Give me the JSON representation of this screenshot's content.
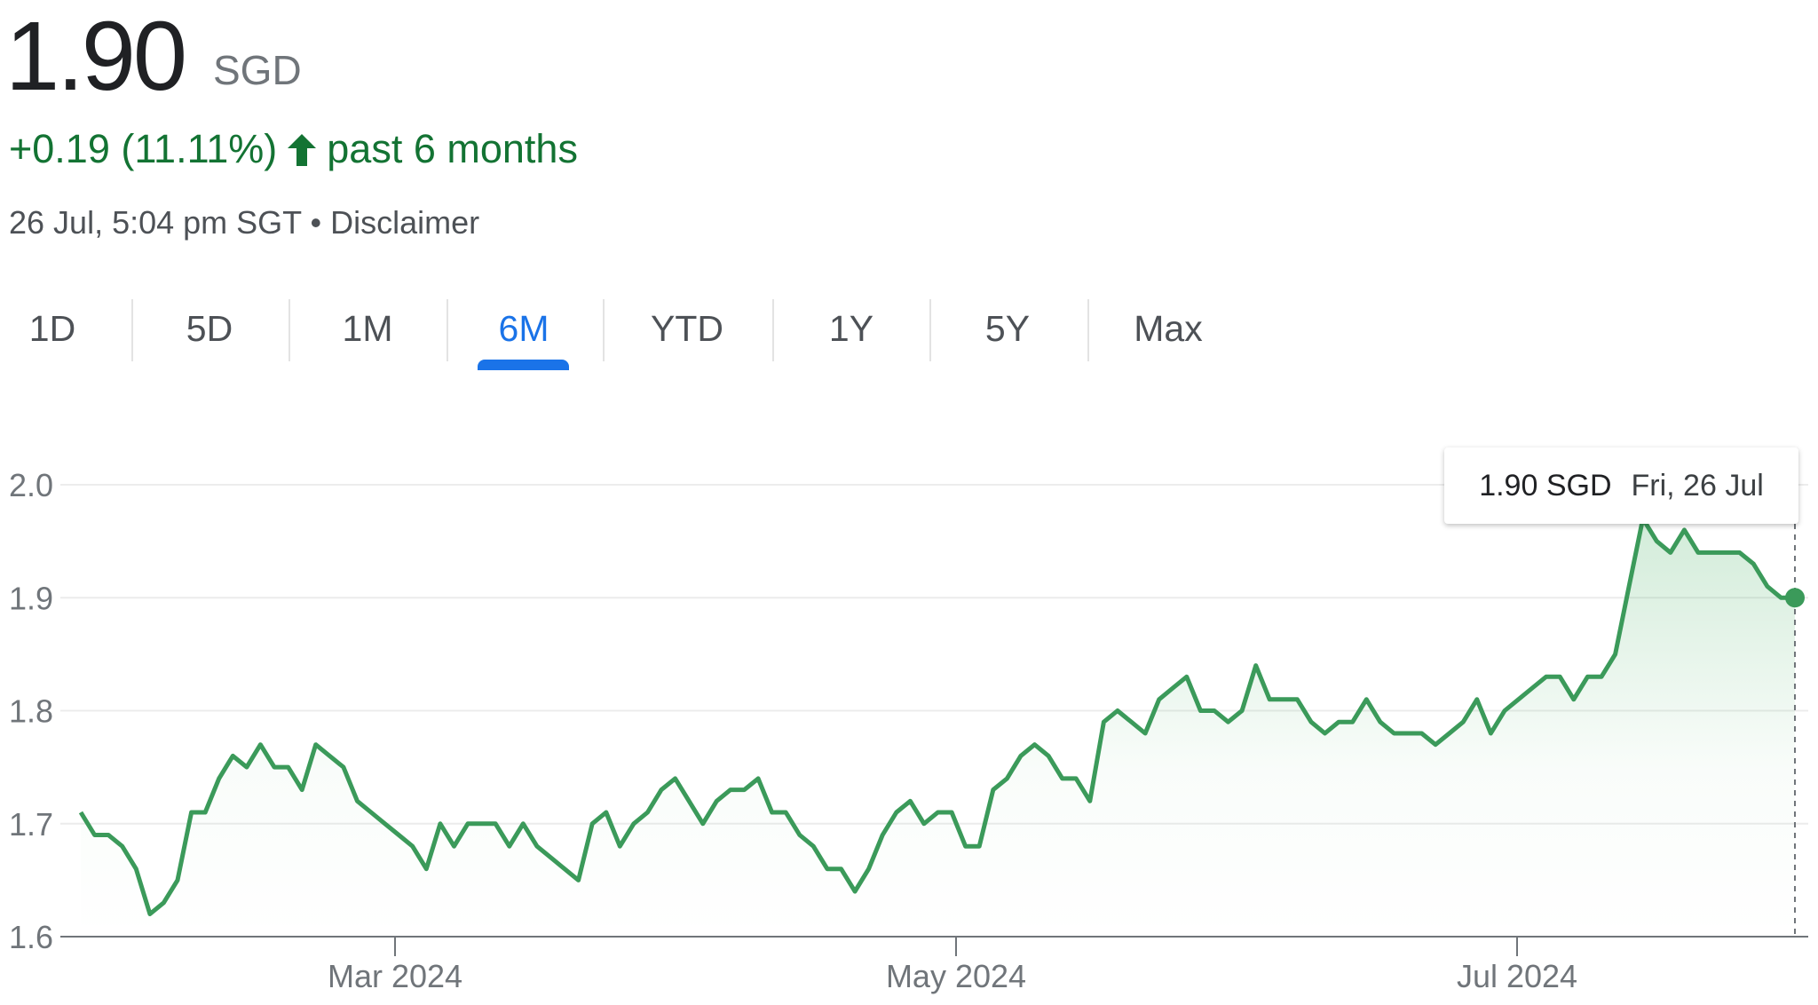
{
  "quote": {
    "price": "1.90",
    "currency": "SGD",
    "change": "+0.19 (11.11%)",
    "direction_icon": "arrow-up-icon",
    "period": "past 6 months",
    "timestamp": "26 Jul, 5:04 pm SGT",
    "separator": "•",
    "disclaimer": "Disclaimer"
  },
  "tabs": [
    {
      "label": "1D",
      "active": false
    },
    {
      "label": "5D",
      "active": false
    },
    {
      "label": "1M",
      "active": false
    },
    {
      "label": "6M",
      "active": true
    },
    {
      "label": "YTD",
      "active": false
    },
    {
      "label": "1Y",
      "active": false
    },
    {
      "label": "5Y",
      "active": false
    },
    {
      "label": "Max",
      "active": false
    }
  ],
  "tooltip": {
    "value": "1.90 SGD",
    "date": "Fri, 26 Jul"
  },
  "colors": {
    "up": "#137333",
    "line": "#34a853",
    "accent": "#1a73e8"
  },
  "chart_data": {
    "type": "line",
    "ylim": [
      1.6,
      2.0
    ],
    "yticks": [
      "1.6",
      "1.7",
      "1.8",
      "1.9",
      "2.0"
    ],
    "xticks": [
      "Mar 2024",
      "May 2024",
      "Jul 2024"
    ],
    "grid": true,
    "series": [
      {
        "values": [
          1.71,
          1.69,
          1.69,
          1.68,
          1.66,
          1.62,
          1.63,
          1.65,
          1.71,
          1.71,
          1.74,
          1.76,
          1.75,
          1.77,
          1.75,
          1.75,
          1.73,
          1.77,
          1.76,
          1.75,
          1.72,
          1.71,
          1.7,
          1.69,
          1.68,
          1.66,
          1.7,
          1.68,
          1.7,
          1.7,
          1.7,
          1.68,
          1.7,
          1.68,
          1.67,
          1.66,
          1.65,
          1.7,
          1.71,
          1.68,
          1.7,
          1.71,
          1.73,
          1.74,
          1.72,
          1.7,
          1.72,
          1.73,
          1.73,
          1.74,
          1.71,
          1.71,
          1.69,
          1.68,
          1.66,
          1.66,
          1.64,
          1.66,
          1.69,
          1.71,
          1.72,
          1.7,
          1.71,
          1.71,
          1.68,
          1.68,
          1.73,
          1.74,
          1.76,
          1.77,
          1.76,
          1.74,
          1.74,
          1.72,
          1.79,
          1.8,
          1.79,
          1.78,
          1.81,
          1.82,
          1.83,
          1.8,
          1.8,
          1.79,
          1.8,
          1.84,
          1.81,
          1.81,
          1.81,
          1.79,
          1.78,
          1.79,
          1.79,
          1.81,
          1.79,
          1.78,
          1.78,
          1.78,
          1.77,
          1.78,
          1.79,
          1.81,
          1.78,
          1.8,
          1.81,
          1.82,
          1.83,
          1.83,
          1.81,
          1.83,
          1.83,
          1.85,
          1.91,
          1.97,
          1.95,
          1.94,
          1.96,
          1.94,
          1.94,
          1.94,
          1.94,
          1.93,
          1.91,
          1.9,
          1.9
        ]
      }
    ]
  }
}
